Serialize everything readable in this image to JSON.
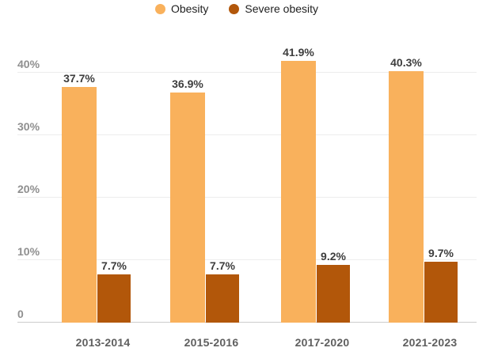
{
  "legend": {
    "items": [
      {
        "label": "Obesity",
        "color": "#f9b15c"
      },
      {
        "label": "Severe obesity",
        "color": "#b2570a"
      }
    ]
  },
  "chart_data": {
    "type": "bar",
    "categories": [
      "2013-2014",
      "2015-2016",
      "2017-2020",
      "2021-2023"
    ],
    "series": [
      {
        "name": "Obesity",
        "color": "#f9b15c",
        "values": [
          37.7,
          36.9,
          41.9,
          40.3
        ],
        "data_labels": [
          "37.7%",
          "36.9%",
          "41.9%",
          "40.3%"
        ]
      },
      {
        "name": "Severe obesity",
        "color": "#b2570a",
        "values": [
          7.7,
          7.7,
          9.2,
          9.7
        ],
        "data_labels": [
          "7.7%",
          "7.7%",
          "9.2%",
          "9.7%"
        ]
      }
    ],
    "xlabel": "",
    "ylabel": "",
    "ylim": [
      0,
      45
    ],
    "yticks": [
      {
        "value": 0,
        "label": "0"
      },
      {
        "value": 10,
        "label": "10%"
      },
      {
        "value": 20,
        "label": "20%"
      },
      {
        "value": 30,
        "label": "30%"
      },
      {
        "value": 40,
        "label": "40%"
      }
    ],
    "grid": true,
    "legend_position": "top",
    "colors": {
      "grid_line": "#ededed",
      "axis_line": "#cccccc",
      "tick_label": "#8f8f8f",
      "category_label": "#5f5f5f",
      "value_label": "#3d3d3d",
      "background": "#ffffff"
    }
  }
}
